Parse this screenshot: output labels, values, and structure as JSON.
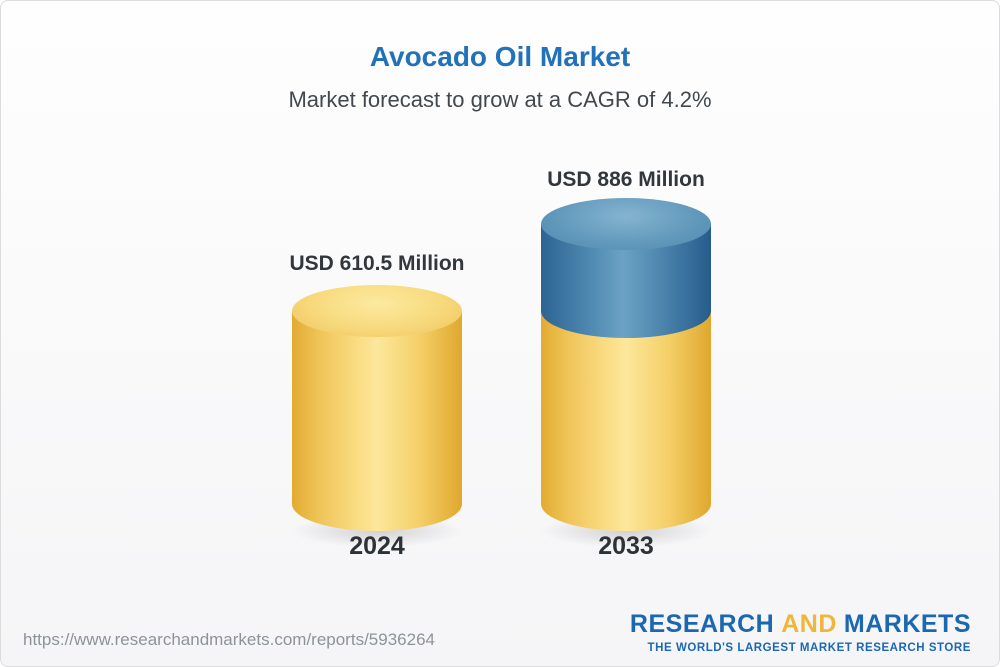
{
  "header": {
    "title": "Avocado Oil Market",
    "subtitle": "Market forecast to grow at a CAGR of 4.2%"
  },
  "chart_data": {
    "type": "bar",
    "variant": "3d-cylinder",
    "title": "Avocado Oil Market",
    "subtitle": "Market forecast to grow at a CAGR of 4.2%",
    "cagr_percent": 4.2,
    "unit": "USD Million",
    "categories": [
      "2024",
      "2033"
    ],
    "values": [
      610.5,
      886
    ],
    "value_labels": [
      "USD 610.5 Million",
      "USD 886 Million"
    ],
    "colors": {
      "bar_base": "#f6c95c",
      "bar_growth_segment": "#3d7eae",
      "title": "#2272b9"
    }
  },
  "footer": {
    "report_url": "https://www.researchandmarkets.com/reports/5936264",
    "logo": {
      "word_research": "RESEARCH",
      "word_and": "AND",
      "word_markets": "MARKETS",
      "tagline": "THE WORLD'S LARGEST MARKET RESEARCH STORE"
    }
  }
}
